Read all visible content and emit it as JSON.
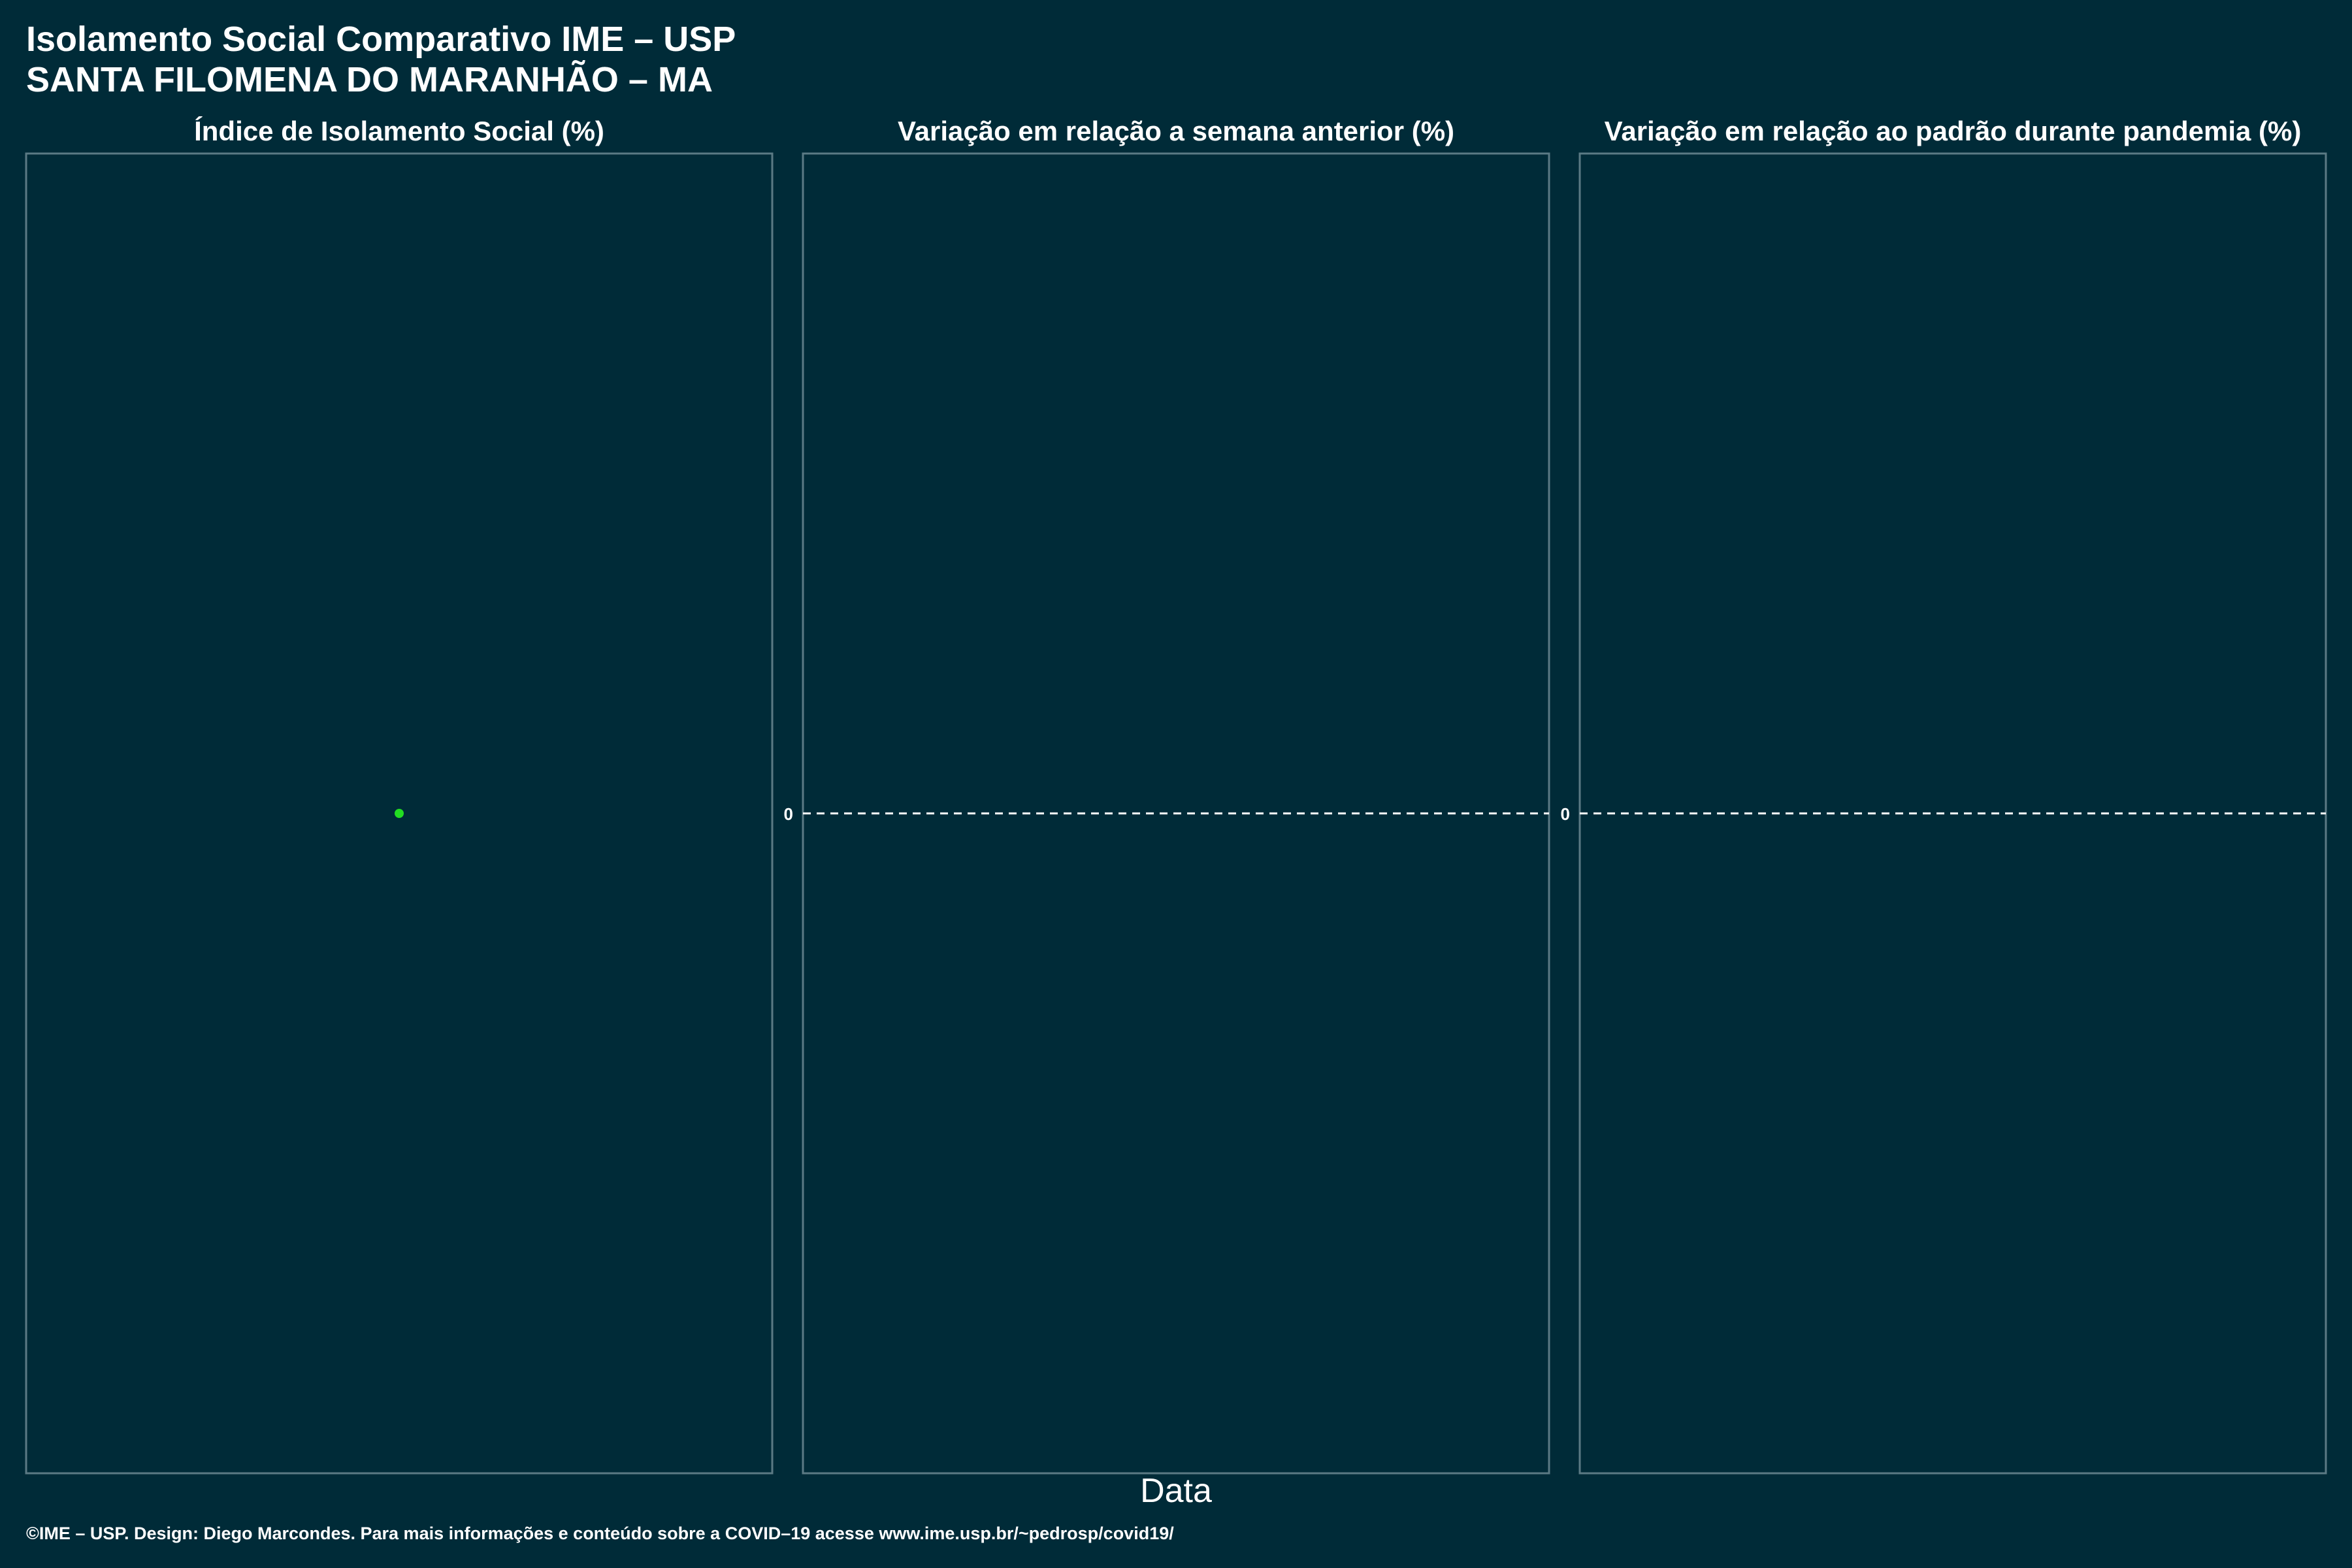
{
  "header": {
    "title_line1": "Isolamento Social Comparativo IME – USP",
    "title_line2": "SANTA FILOMENA DO MARANHÃO – MA"
  },
  "footer": {
    "credit": "©IME – USP. Design: Diego Marcondes. Para mais informações e conteúdo sobre a COVID–19 acesse www.ime.usp.br/~pedrosp/covid19/"
  },
  "colors": {
    "background": "#002b38",
    "panel_border": "#5b7a84",
    "point": "#22dd22",
    "reference_line": "#ffffff",
    "text": "#ffffff"
  },
  "chart_data": [
    {
      "type": "scatter",
      "title": "Índice de Isolamento Social (%)",
      "xlabel": "Data",
      "ylabel": "",
      "y_tick_labels": [],
      "series": [
        {
          "points": [
            {
              "x": null,
              "y": null
            }
          ]
        }
      ],
      "grid": false
    },
    {
      "type": "line",
      "title": "Variação em relação a semana anterior (%)",
      "xlabel": "Data",
      "ylabel": "",
      "y_tick_labels": [
        "0"
      ],
      "reference_line": {
        "y": 0,
        "style": "dashed"
      },
      "series": [],
      "grid": false
    },
    {
      "type": "line",
      "title": "Variação em relação ao padrão durante pandemia (%)",
      "xlabel": "Data",
      "ylabel": "",
      "y_tick_labels": [
        "0"
      ],
      "reference_line": {
        "y": 0,
        "style": "dashed"
      },
      "series": [],
      "grid": false
    }
  ]
}
